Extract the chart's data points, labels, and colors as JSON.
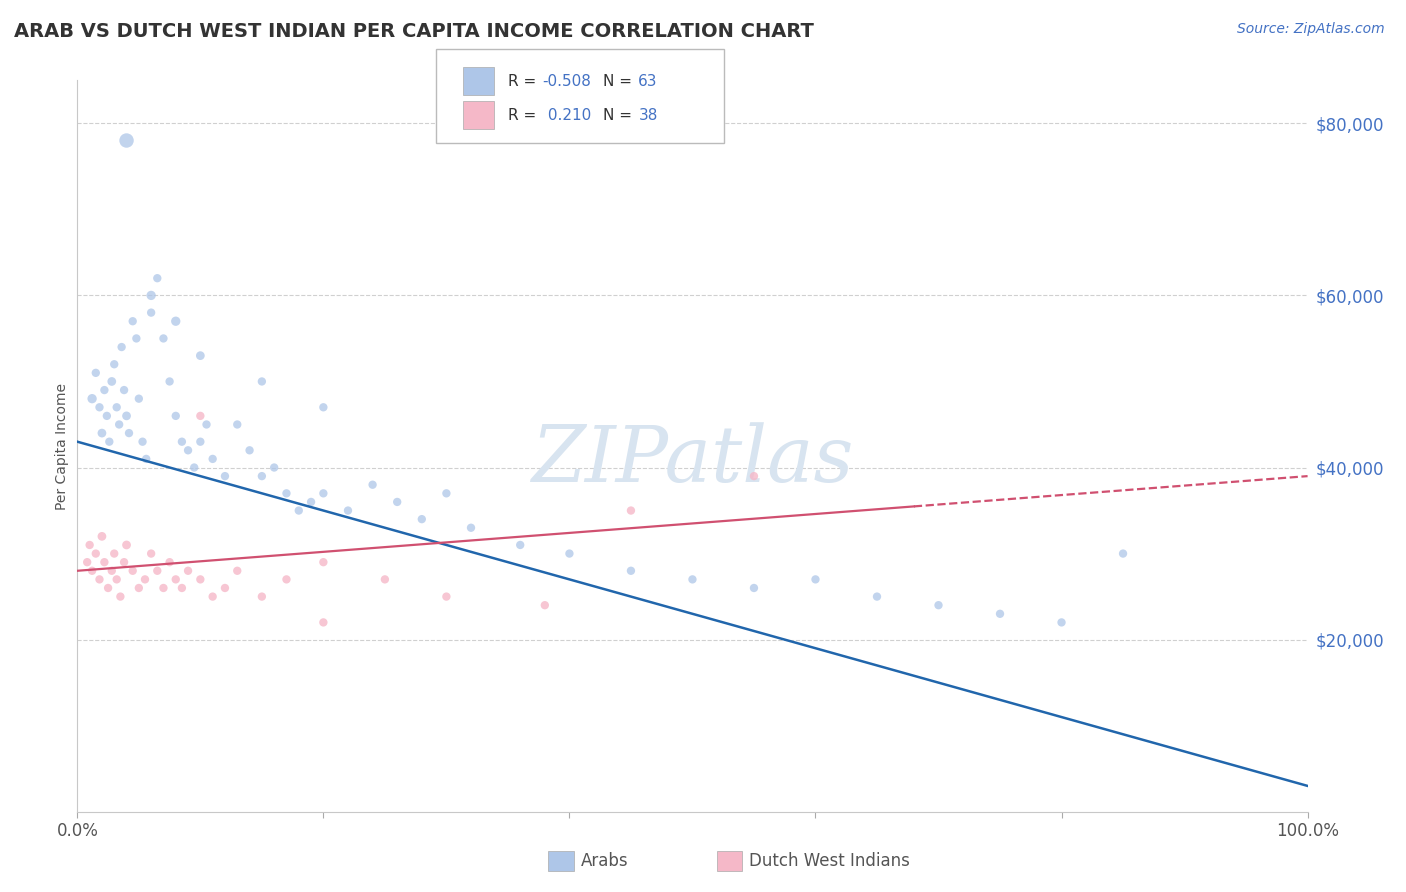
{
  "title": "ARAB VS DUTCH WEST INDIAN PER CAPITA INCOME CORRELATION CHART",
  "source_text": "Source: ZipAtlas.com",
  "ylabel": "Per Capita Income",
  "blue_color": "#aec6e8",
  "pink_color": "#f5b8c8",
  "blue_line_color": "#2166ac",
  "pink_line_color": "#d05070",
  "r_value_color": "#4472c4",
  "legend_r_arab": "-0.508",
  "legend_n_arab": "63",
  "legend_r_dwi": "0.210",
  "legend_n_dwi": "38",
  "watermark_text": "ZIPatlas",
  "watermark_color": "#d8e4f0",
  "ytick_values": [
    20000,
    40000,
    60000,
    80000
  ],
  "ytick_labels": [
    "$20,000",
    "$40,000",
    "$60,000",
    "$80,000"
  ],
  "xtick_values": [
    0,
    20,
    40,
    60,
    80,
    100
  ],
  "xtick_labels": [
    "0.0%",
    "",
    "",
    "",
    "",
    "100.0%"
  ],
  "xlim": [
    0,
    100
  ],
  "ylim": [
    0,
    85000
  ],
  "blue_trend_x0": 0,
  "blue_trend_y0": 43000,
  "blue_trend_x1": 100,
  "blue_trend_y1": 3000,
  "pink_trend_x0": 0,
  "pink_trend_y0": 28000,
  "pink_trend_x1": 100,
  "pink_trend_y1": 39000,
  "pink_dash_start_x": 68,
  "grid_color": "#d0d0d0",
  "border_color": "#c8c8c8",
  "arab_x": [
    1.2,
    1.5,
    1.8,
    2.0,
    2.2,
    2.4,
    2.6,
    2.8,
    3.0,
    3.2,
    3.4,
    3.6,
    3.8,
    4.0,
    4.2,
    4.5,
    4.8,
    5.0,
    5.3,
    5.6,
    6.0,
    6.5,
    7.0,
    7.5,
    8.0,
    8.5,
    9.0,
    9.5,
    10.0,
    10.5,
    11.0,
    12.0,
    13.0,
    14.0,
    15.0,
    16.0,
    17.0,
    18.0,
    19.0,
    20.0,
    22.0,
    24.0,
    26.0,
    28.0,
    32.0,
    36.0,
    40.0,
    45.0,
    50.0,
    55.0,
    60.0,
    65.0,
    70.0,
    75.0,
    80.0,
    85.0,
    4.0,
    6.0,
    8.0,
    10.0,
    15.0,
    20.0,
    30.0
  ],
  "arab_y": [
    48000,
    51000,
    47000,
    44000,
    49000,
    46000,
    43000,
    50000,
    52000,
    47000,
    45000,
    54000,
    49000,
    46000,
    44000,
    57000,
    55000,
    48000,
    43000,
    41000,
    58000,
    62000,
    55000,
    50000,
    46000,
    43000,
    42000,
    40000,
    43000,
    45000,
    41000,
    39000,
    45000,
    42000,
    39000,
    40000,
    37000,
    35000,
    36000,
    37000,
    35000,
    38000,
    36000,
    34000,
    33000,
    31000,
    30000,
    28000,
    27000,
    26000,
    27000,
    25000,
    24000,
    23000,
    22000,
    30000,
    78000,
    60000,
    57000,
    53000,
    50000,
    47000,
    37000
  ],
  "arab_sizes": [
    25,
    20,
    20,
    22,
    20,
    20,
    20,
    22,
    20,
    20,
    20,
    20,
    20,
    22,
    20,
    20,
    20,
    20,
    20,
    20,
    20,
    20,
    20,
    20,
    20,
    20,
    20,
    20,
    20,
    20,
    20,
    20,
    20,
    20,
    20,
    20,
    20,
    20,
    20,
    20,
    20,
    20,
    20,
    20,
    20,
    20,
    20,
    20,
    20,
    20,
    20,
    20,
    20,
    20,
    20,
    20,
    60,
    25,
    25,
    22,
    20,
    20,
    20
  ],
  "dwi_x": [
    0.8,
    1.0,
    1.2,
    1.5,
    1.8,
    2.0,
    2.2,
    2.5,
    2.8,
    3.0,
    3.2,
    3.5,
    3.8,
    4.0,
    4.5,
    5.0,
    5.5,
    6.0,
    6.5,
    7.0,
    7.5,
    8.0,
    8.5,
    9.0,
    10.0,
    11.0,
    12.0,
    13.0,
    15.0,
    17.0,
    20.0,
    25.0,
    30.0,
    38.0,
    45.0,
    55.0,
    20.0,
    10.0
  ],
  "dwi_y": [
    29000,
    31000,
    28000,
    30000,
    27000,
    32000,
    29000,
    26000,
    28000,
    30000,
    27000,
    25000,
    29000,
    31000,
    28000,
    26000,
    27000,
    30000,
    28000,
    26000,
    29000,
    27000,
    26000,
    28000,
    27000,
    25000,
    26000,
    28000,
    25000,
    27000,
    29000,
    27000,
    25000,
    24000,
    35000,
    39000,
    22000,
    46000
  ],
  "dwi_sizes": [
    20,
    20,
    20,
    20,
    20,
    22,
    20,
    20,
    20,
    20,
    20,
    20,
    20,
    22,
    20,
    20,
    20,
    20,
    20,
    20,
    20,
    20,
    20,
    20,
    20,
    20,
    20,
    20,
    20,
    20,
    20,
    20,
    20,
    20,
    20,
    20,
    20,
    20
  ]
}
